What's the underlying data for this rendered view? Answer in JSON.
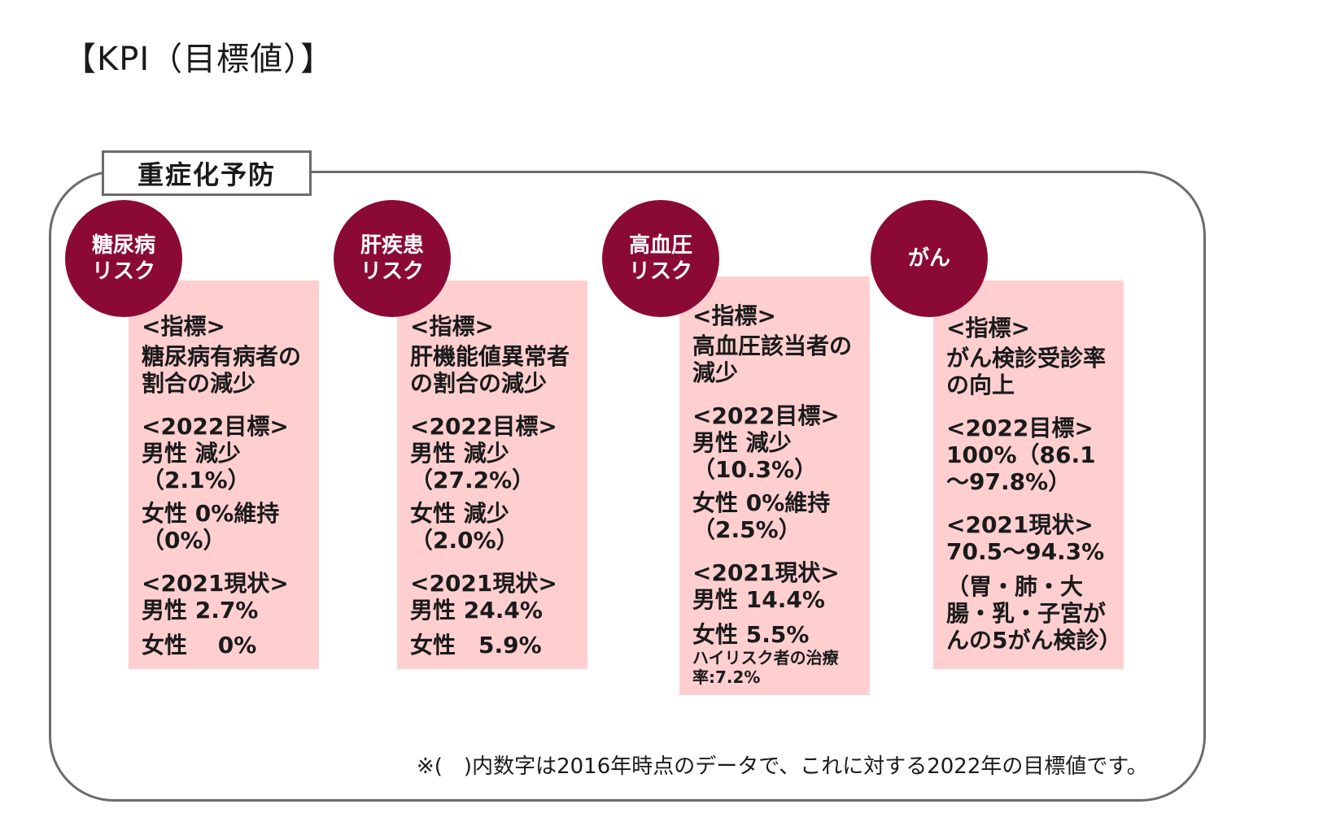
{
  "page_title": "【KPI（目標値）】",
  "section_label": "重症化予防",
  "cards": [
    {
      "risk_lines": [
        "糖尿病",
        "リスク"
      ],
      "indicator_label": "<指標>",
      "indicator_text": "糖尿病有病者の割合の減少",
      "target_label": "<2022目標>",
      "target_lines": [
        "男性 減少",
        "（2.1%）",
        "女性 0%維持",
        "（0%）"
      ],
      "current_label": "<2021現状>",
      "current_lines": [
        "男性 2.7%",
        "女性　 0%"
      ]
    },
    {
      "risk_lines": [
        "肝疾患",
        "リスク"
      ],
      "indicator_label": "<指標>",
      "indicator_text": "肝機能値異常者の割合の減少",
      "target_label": "<2022目標>",
      "target_lines": [
        "男性 減少",
        "（27.2%）",
        "女性 減少",
        "（2.0%）"
      ],
      "current_label": "<2021現状>",
      "current_lines": [
        "男性 24.4%",
        "女性　5.9%"
      ]
    },
    {
      "risk_lines": [
        "高血圧",
        "リスク"
      ],
      "indicator_label": "<指標>",
      "indicator_text": "高血圧該当者の減少",
      "target_label": "<2022目標>",
      "target_lines": [
        "男性 減少",
        "（10.3%）",
        "女性 0%維持",
        "（2.5%）"
      ],
      "current_label": "<2021現状>",
      "current_lines": [
        "男性 14.4%",
        "女性 5.5%"
      ],
      "note": "ハイリスク者の治療率:7.2%"
    },
    {
      "risk_lines": [
        "がん"
      ],
      "indicator_label": "<指標>",
      "indicator_text": "がん検診受診率の向上",
      "target_label": "<2022目標>",
      "target_lines": [
        "100%（86.1～97.8%）"
      ],
      "current_label": "<2021現状>",
      "current_lines": [
        "70.5～94.3%"
      ],
      "note": "（胃・肺・大腸・乳・子宮がんの5がん検診）"
    }
  ],
  "footnote": "※(　)内数字は2016年時点のデータで、これに対する2022年の目標値です。",
  "colors": {
    "circle": "#8b0a35",
    "card": "#ffcfd0",
    "frame": "#6b6b6b"
  }
}
